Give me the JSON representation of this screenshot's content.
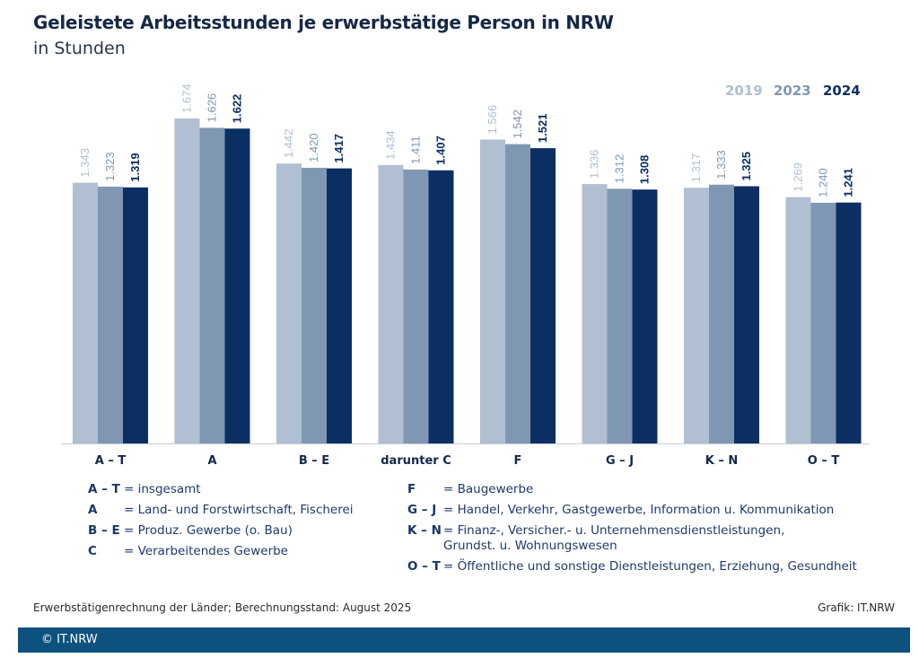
{
  "header": {
    "title": "Geleistete Arbeitsstunden je erwerbstätige Person in NRW",
    "subtitle": "in Stunden"
  },
  "colors": {
    "2019": "#b0bfd1",
    "2023": "#7f97b3",
    "2024": "#0c2f63",
    "label_2019": "#b0bfd1",
    "label_2023": "#7f97b3",
    "label_2024": "#0c2f63",
    "footer_bar": "#0d527e"
  },
  "chart_data": {
    "type": "bar",
    "title": "Geleistete Arbeitsstunden je erwerbstätige Person in NRW",
    "subtitle": "in Stunden",
    "xlabel": "",
    "ylabel": "Stunden",
    "ylim": [
      0,
      1700
    ],
    "grid": false,
    "legend_position": "top-right",
    "categories": [
      "A – T",
      "A",
      "B – E",
      "darunter C",
      "F",
      "G – J",
      "K – N",
      "O – T"
    ],
    "series": [
      {
        "name": "2019",
        "values": [
          1343,
          1674,
          1442,
          1434,
          1566,
          1336,
          1317,
          1269
        ],
        "labels": [
          "1.343",
          "1.674",
          "1.442",
          "1.434",
          "1.566",
          "1.336",
          "1.317",
          "1.269"
        ]
      },
      {
        "name": "2023",
        "values": [
          1323,
          1626,
          1420,
          1411,
          1542,
          1312,
          1333,
          1240
        ],
        "labels": [
          "1.323",
          "1.626",
          "1.420",
          "1.411",
          "1.542",
          "1.312",
          "1.333",
          "1.240"
        ]
      },
      {
        "name": "2024",
        "values": [
          1319,
          1622,
          1417,
          1407,
          1521,
          1308,
          1325,
          1241
        ],
        "labels": [
          "1.319",
          "1.622",
          "1.417",
          "1.407",
          "1.521",
          "1.308",
          "1.325",
          "1.241"
        ]
      }
    ]
  },
  "definitions": {
    "left": [
      {
        "code": "A – T",
        "desc": "= insgesamt"
      },
      {
        "code": "A",
        "desc": "= Land- und Forstwirtschaft, Fischerei"
      },
      {
        "code": "B – E",
        "desc": "= Produz. Gewerbe (o. Bau)"
      },
      {
        "code": "C",
        "desc": "= Verarbeitendes Gewerbe"
      }
    ],
    "right": [
      {
        "code": "F",
        "desc": "= Baugewerbe"
      },
      {
        "code": "G – J",
        "desc": "= Handel, Verkehr, Gastgewerbe, Information u. Kommunikation"
      },
      {
        "code": "K – N",
        "desc": "= Finanz-, Versicher.- u. Unternehmensdienstleistungen,\n   Grundst. u. Wohnungswesen"
      },
      {
        "code": "O – T",
        "desc": "= Öffentliche und sonstige Dienstleistungen, Erziehung, Gesundheit"
      }
    ]
  },
  "footer": {
    "source": "Erwerbstätigenrechnung der Länder; Berechnungsstand: August 2025",
    "credit": "Grafik: IT.NRW",
    "copyright": "© IT.NRW"
  }
}
